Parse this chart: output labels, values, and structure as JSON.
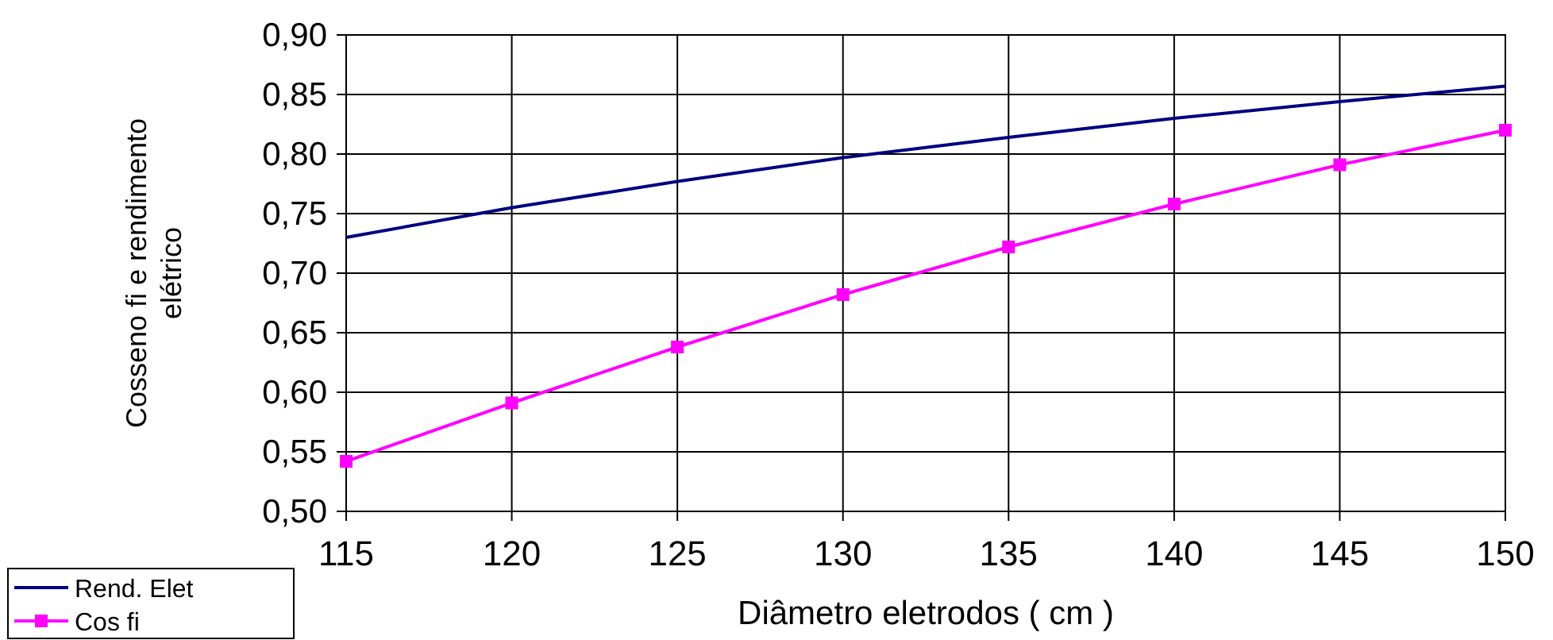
{
  "chart_data": {
    "type": "line",
    "xlabel": "Diâmetro eletrodos ( cm )",
    "ylabel": "Cosseno fi e rendimento elétrico",
    "x": [
      115,
      120,
      125,
      130,
      135,
      140,
      145,
      150
    ],
    "series": [
      {
        "name": "Rend. Elet",
        "color": "#000080",
        "marker": "none",
        "values": [
          0.73,
          0.755,
          0.777,
          0.797,
          0.814,
          0.83,
          0.844,
          0.857
        ]
      },
      {
        "name": "Cos fi",
        "color": "#ff00ff",
        "marker": "square",
        "values": [
          0.542,
          0.591,
          0.638,
          0.682,
          0.722,
          0.758,
          0.791,
          0.82
        ]
      }
    ],
    "xlim": [
      115,
      150
    ],
    "xticks": [
      115,
      120,
      125,
      130,
      135,
      140,
      145,
      150
    ],
    "ylim": [
      0.5,
      0.9
    ],
    "yticks": [
      {
        "value": 0.5,
        "label": "0,50"
      },
      {
        "value": 0.55,
        "label": "0,55"
      },
      {
        "value": 0.6,
        "label": "0,60"
      },
      {
        "value": 0.65,
        "label": "0,65"
      },
      {
        "value": 0.7,
        "label": "0,70"
      },
      {
        "value": 0.75,
        "label": "0,75"
      },
      {
        "value": 0.8,
        "label": "0,80"
      },
      {
        "value": 0.85,
        "label": "0,85"
      },
      {
        "value": 0.9,
        "label": "0,90"
      }
    ],
    "grid": true,
    "legend": "bottom left",
    "line_style": "solid"
  }
}
